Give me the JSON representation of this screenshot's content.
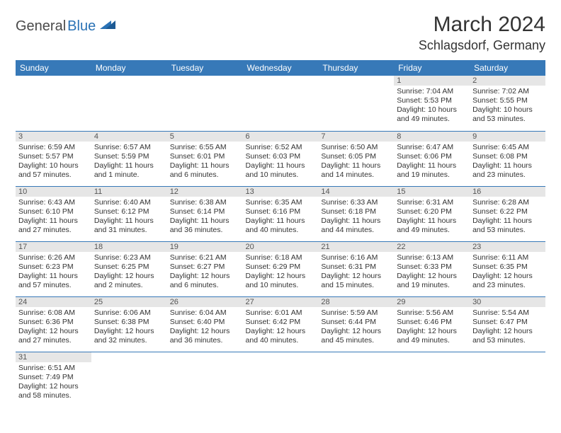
{
  "logo": {
    "dark": "General",
    "blue": "Blue"
  },
  "title": "March 2024",
  "location": "Schlagsdorf, Germany",
  "colors": {
    "header_bg": "#3779b8",
    "header_text": "#ffffff",
    "daynum_bg": "#e6e6e6",
    "border": "#3779b8",
    "logo_blue": "#2a72b5",
    "logo_dark": "#4a4a4a"
  },
  "dayHeaders": [
    "Sunday",
    "Monday",
    "Tuesday",
    "Wednesday",
    "Thursday",
    "Friday",
    "Saturday"
  ],
  "weeks": [
    [
      null,
      null,
      null,
      null,
      null,
      {
        "n": "1",
        "sr": "Sunrise: 7:04 AM",
        "ss": "Sunset: 5:53 PM",
        "dl": "Daylight: 10 hours and 49 minutes."
      },
      {
        "n": "2",
        "sr": "Sunrise: 7:02 AM",
        "ss": "Sunset: 5:55 PM",
        "dl": "Daylight: 10 hours and 53 minutes."
      }
    ],
    [
      {
        "n": "3",
        "sr": "Sunrise: 6:59 AM",
        "ss": "Sunset: 5:57 PM",
        "dl": "Daylight: 10 hours and 57 minutes."
      },
      {
        "n": "4",
        "sr": "Sunrise: 6:57 AM",
        "ss": "Sunset: 5:59 PM",
        "dl": "Daylight: 11 hours and 1 minute."
      },
      {
        "n": "5",
        "sr": "Sunrise: 6:55 AM",
        "ss": "Sunset: 6:01 PM",
        "dl": "Daylight: 11 hours and 6 minutes."
      },
      {
        "n": "6",
        "sr": "Sunrise: 6:52 AM",
        "ss": "Sunset: 6:03 PM",
        "dl": "Daylight: 11 hours and 10 minutes."
      },
      {
        "n": "7",
        "sr": "Sunrise: 6:50 AM",
        "ss": "Sunset: 6:05 PM",
        "dl": "Daylight: 11 hours and 14 minutes."
      },
      {
        "n": "8",
        "sr": "Sunrise: 6:47 AM",
        "ss": "Sunset: 6:06 PM",
        "dl": "Daylight: 11 hours and 19 minutes."
      },
      {
        "n": "9",
        "sr": "Sunrise: 6:45 AM",
        "ss": "Sunset: 6:08 PM",
        "dl": "Daylight: 11 hours and 23 minutes."
      }
    ],
    [
      {
        "n": "10",
        "sr": "Sunrise: 6:43 AM",
        "ss": "Sunset: 6:10 PM",
        "dl": "Daylight: 11 hours and 27 minutes."
      },
      {
        "n": "11",
        "sr": "Sunrise: 6:40 AM",
        "ss": "Sunset: 6:12 PM",
        "dl": "Daylight: 11 hours and 31 minutes."
      },
      {
        "n": "12",
        "sr": "Sunrise: 6:38 AM",
        "ss": "Sunset: 6:14 PM",
        "dl": "Daylight: 11 hours and 36 minutes."
      },
      {
        "n": "13",
        "sr": "Sunrise: 6:35 AM",
        "ss": "Sunset: 6:16 PM",
        "dl": "Daylight: 11 hours and 40 minutes."
      },
      {
        "n": "14",
        "sr": "Sunrise: 6:33 AM",
        "ss": "Sunset: 6:18 PM",
        "dl": "Daylight: 11 hours and 44 minutes."
      },
      {
        "n": "15",
        "sr": "Sunrise: 6:31 AM",
        "ss": "Sunset: 6:20 PM",
        "dl": "Daylight: 11 hours and 49 minutes."
      },
      {
        "n": "16",
        "sr": "Sunrise: 6:28 AM",
        "ss": "Sunset: 6:22 PM",
        "dl": "Daylight: 11 hours and 53 minutes."
      }
    ],
    [
      {
        "n": "17",
        "sr": "Sunrise: 6:26 AM",
        "ss": "Sunset: 6:23 PM",
        "dl": "Daylight: 11 hours and 57 minutes."
      },
      {
        "n": "18",
        "sr": "Sunrise: 6:23 AM",
        "ss": "Sunset: 6:25 PM",
        "dl": "Daylight: 12 hours and 2 minutes."
      },
      {
        "n": "19",
        "sr": "Sunrise: 6:21 AM",
        "ss": "Sunset: 6:27 PM",
        "dl": "Daylight: 12 hours and 6 minutes."
      },
      {
        "n": "20",
        "sr": "Sunrise: 6:18 AM",
        "ss": "Sunset: 6:29 PM",
        "dl": "Daylight: 12 hours and 10 minutes."
      },
      {
        "n": "21",
        "sr": "Sunrise: 6:16 AM",
        "ss": "Sunset: 6:31 PM",
        "dl": "Daylight: 12 hours and 15 minutes."
      },
      {
        "n": "22",
        "sr": "Sunrise: 6:13 AM",
        "ss": "Sunset: 6:33 PM",
        "dl": "Daylight: 12 hours and 19 minutes."
      },
      {
        "n": "23",
        "sr": "Sunrise: 6:11 AM",
        "ss": "Sunset: 6:35 PM",
        "dl": "Daylight: 12 hours and 23 minutes."
      }
    ],
    [
      {
        "n": "24",
        "sr": "Sunrise: 6:08 AM",
        "ss": "Sunset: 6:36 PM",
        "dl": "Daylight: 12 hours and 27 minutes."
      },
      {
        "n": "25",
        "sr": "Sunrise: 6:06 AM",
        "ss": "Sunset: 6:38 PM",
        "dl": "Daylight: 12 hours and 32 minutes."
      },
      {
        "n": "26",
        "sr": "Sunrise: 6:04 AM",
        "ss": "Sunset: 6:40 PM",
        "dl": "Daylight: 12 hours and 36 minutes."
      },
      {
        "n": "27",
        "sr": "Sunrise: 6:01 AM",
        "ss": "Sunset: 6:42 PM",
        "dl": "Daylight: 12 hours and 40 minutes."
      },
      {
        "n": "28",
        "sr": "Sunrise: 5:59 AM",
        "ss": "Sunset: 6:44 PM",
        "dl": "Daylight: 12 hours and 45 minutes."
      },
      {
        "n": "29",
        "sr": "Sunrise: 5:56 AM",
        "ss": "Sunset: 6:46 PM",
        "dl": "Daylight: 12 hours and 49 minutes."
      },
      {
        "n": "30",
        "sr": "Sunrise: 5:54 AM",
        "ss": "Sunset: 6:47 PM",
        "dl": "Daylight: 12 hours and 53 minutes."
      }
    ],
    [
      {
        "n": "31",
        "sr": "Sunrise: 6:51 AM",
        "ss": "Sunset: 7:49 PM",
        "dl": "Daylight: 12 hours and 58 minutes."
      },
      null,
      null,
      null,
      null,
      null,
      null
    ]
  ]
}
